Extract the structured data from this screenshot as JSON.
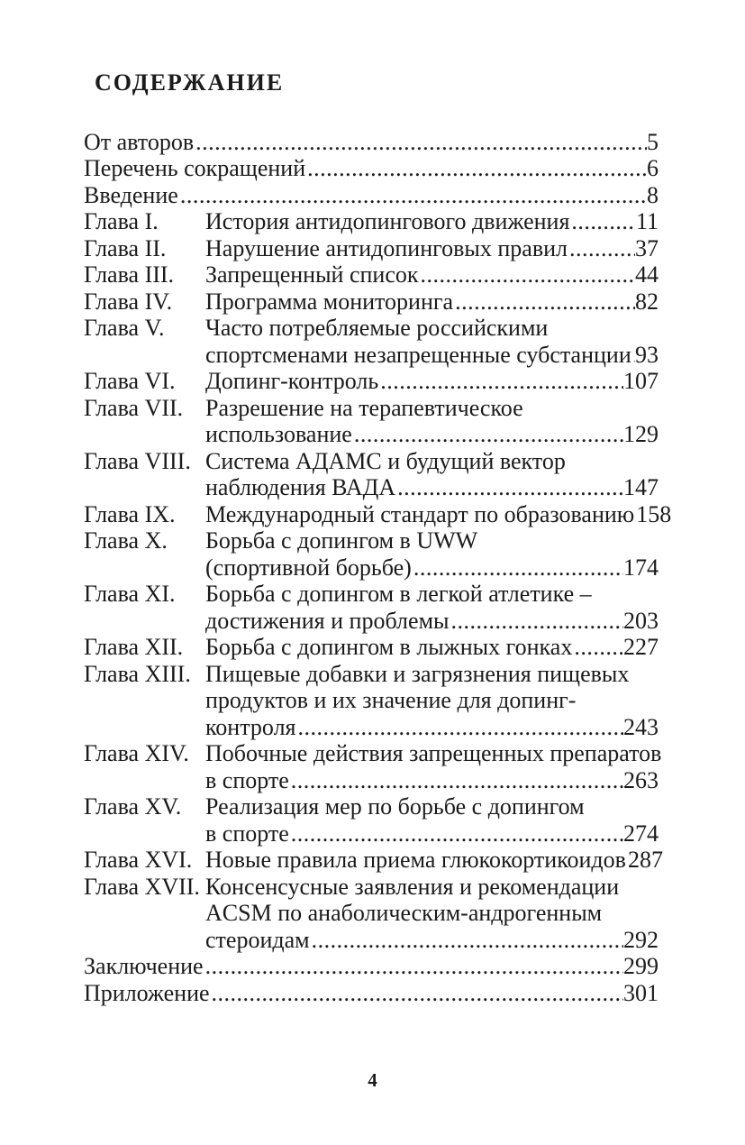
{
  "page": {
    "title": "СОДЕРЖАНИЕ",
    "folio": "4",
    "entries": [
      {
        "label": "",
        "lines": [
          "От авторов"
        ],
        "page": "5"
      },
      {
        "label": "",
        "lines": [
          "Перечень сокращений "
        ],
        "page": "6"
      },
      {
        "label": "",
        "lines": [
          "Введение "
        ],
        "page": "8"
      },
      {
        "label": "Глава I.",
        "lines": [
          "История антидопингового движения "
        ],
        "page": "11"
      },
      {
        "label": "Глава II.",
        "lines": [
          "Нарушение антидопинговых правил "
        ],
        "page": "37"
      },
      {
        "label": "Глава III.",
        "lines": [
          "Запрещенный список "
        ],
        "page": "44"
      },
      {
        "label": "Глава IV.",
        "lines": [
          "Программа мониторинга "
        ],
        "page": "82"
      },
      {
        "label": "Глава V.",
        "lines": [
          "Часто потребляемые российскими",
          "спортсменами незапрещенные субстанции "
        ],
        "page": "93"
      },
      {
        "label": "Глава VI.",
        "lines": [
          "Допинг-контроль  "
        ],
        "page": "107"
      },
      {
        "label": "Глава VII.",
        "lines": [
          "Разрешение на терапевтическое",
          "использование"
        ],
        "page": "129"
      },
      {
        "label": "Глава VIII.",
        "lines": [
          "Система АДАМС и будущий вектор",
          "наблюдения ВАДА "
        ],
        "page": "147"
      },
      {
        "label": "Глава IX.",
        "lines": [
          "Международный стандарт по образованию"
        ],
        "page": "158"
      },
      {
        "label": "Глава X.",
        "lines": [
          "Борьба с допингом в UWW",
          "(спортивной борьбе)"
        ],
        "page": "174"
      },
      {
        "label": "Глава XI.",
        "lines": [
          "Борьба с допингом в легкой атлетике –",
          "достижения и проблемы "
        ],
        "page": "203"
      },
      {
        "label": "Глава XII.",
        "lines": [
          "Борьба с допингом в лыжных гонках "
        ],
        "page": "227"
      },
      {
        "label": "Глава XIII.",
        "lines": [
          "Пищевые добавки и загрязнения пищевых",
          "продуктов и их значение для допинг-",
          "контроля "
        ],
        "page": "243"
      },
      {
        "label": "Глава XIV.",
        "lines": [
          "Побочные действия запрещенных препаратов",
          "в спорте "
        ],
        "page": "263"
      },
      {
        "label": "Глава XV.",
        "lines": [
          "Реализация мер по борьбе с допингом",
          "в спорте "
        ],
        "page": "274"
      },
      {
        "label": "Глава XVI.",
        "lines": [
          "Новые правила приема глюкокортикоидов "
        ],
        "page": "287"
      },
      {
        "label": "Глава XVII.",
        "lines": [
          "Консенсусные заявления и рекомендации",
          "ACSM по анаболическим-андрогенным",
          "стероидам "
        ],
        "page": "292"
      },
      {
        "label": "",
        "lines": [
          "Заключение "
        ],
        "page": "299"
      },
      {
        "label": "",
        "lines": [
          "Приложение"
        ],
        "page": "301"
      }
    ]
  }
}
